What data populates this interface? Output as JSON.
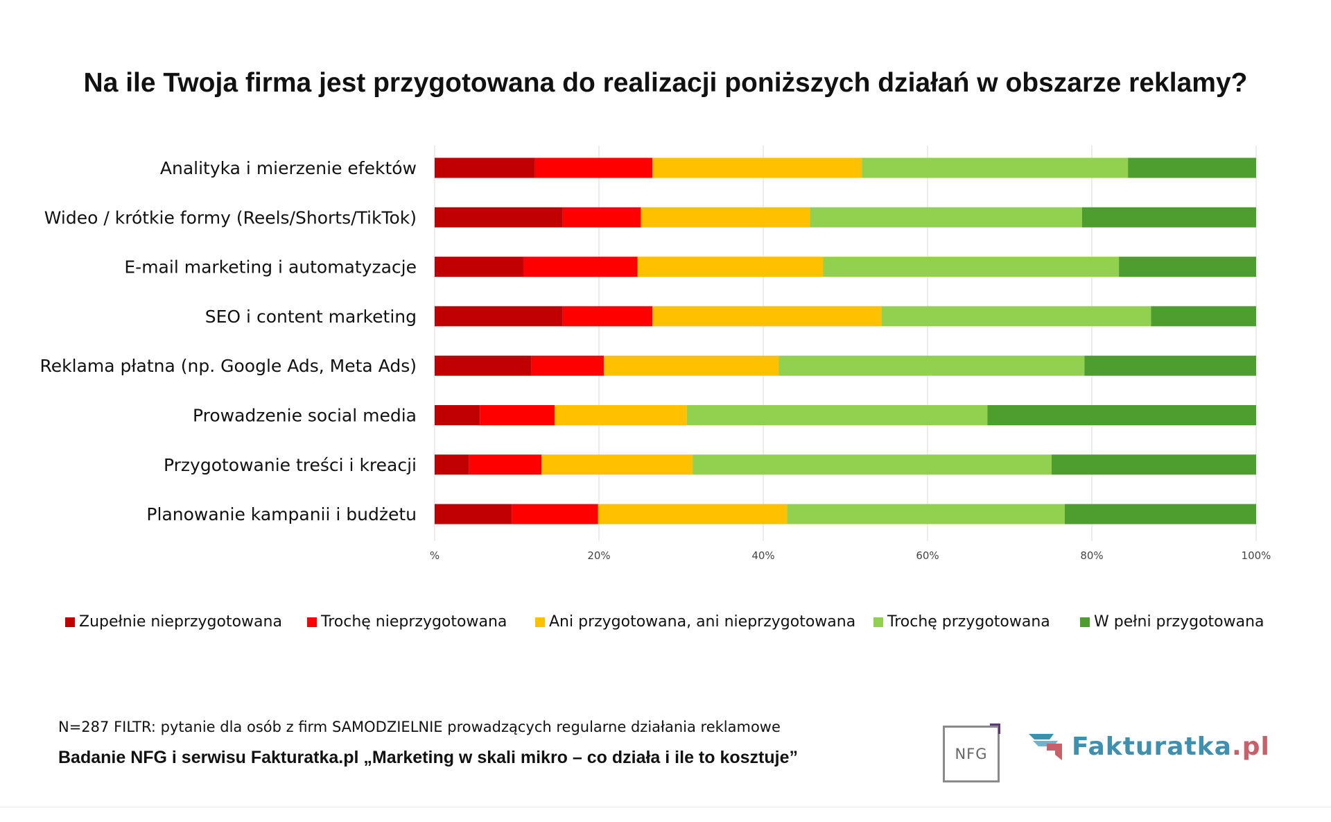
{
  "colors": {
    "zupelnie": "#c00000",
    "troche_nie": "#ff0000",
    "ani": "#ffc000",
    "troche_przyg": "#92d050",
    "pelni": "#4e9d2f",
    "brand_blue": "#3e8fb0",
    "brand_red": "#c8606a"
  },
  "chart_data": {
    "type": "bar",
    "orientation": "horizontal",
    "stacked": true,
    "title": "Na ile Twoja firma jest przygotowana do realizacji poniższych działań w obszarze reklamy?",
    "categories": [
      "Analityka i mierzenie efektów",
      "Wideo / krótkie formy (Reels/Shorts/TikTok)",
      "E-mail marketing i automatyzacje",
      "SEO i content marketing",
      "Reklama płatna (np. Google Ads, Meta Ads)",
      "Prowadzenie social media",
      "Przygotowanie treści i kreacji",
      "Planowanie kampanii i budżetu"
    ],
    "series": [
      {
        "name": "Zupełnie nieprzygotowana",
        "color_key": "zupelnie",
        "values": [
          12.2,
          15.6,
          10.8,
          15.6,
          11.8,
          5.5,
          4.2,
          9.4
        ]
      },
      {
        "name": "Trochę nieprzygotowana",
        "color_key": "troche_nie",
        "values": [
          14.3,
          9.5,
          13.9,
          10.9,
          8.8,
          9.1,
          8.8,
          10.5
        ]
      },
      {
        "name": "Ani przygotowana, ani nieprzygotowana",
        "color_key": "ani",
        "values": [
          25.5,
          20.6,
          22.6,
          27.9,
          21.3,
          16.1,
          18.4,
          23.0
        ]
      },
      {
        "name": "Trochę przygotowana",
        "color_key": "troche_przyg",
        "values": [
          32.4,
          33.1,
          36.0,
          32.8,
          37.2,
          36.6,
          43.7,
          33.8
        ]
      },
      {
        "name": "W pełni przygotowana",
        "color_key": "pelni",
        "values": [
          15.6,
          21.2,
          16.7,
          12.8,
          20.9,
          32.7,
          24.9,
          23.3
        ]
      }
    ],
    "x_ticks": [
      "%",
      "20%",
      "40%",
      "60%",
      "80%",
      "100%"
    ],
    "xlim": [
      0,
      100
    ],
    "grid": true,
    "legend_position": "bottom"
  },
  "footer": {
    "note": "N=287 FILTR: pytanie dla osób z firm SAMODZIELNIE prowadzących regularne działania reklamowe",
    "study": "Badanie NFG i serwisu Fakturatka.pl „Marketing w skali mikro – co działa i ile to kosztuje”"
  },
  "logos": {
    "nfg": "NFG",
    "fakturatka_name": "Fakturatka",
    "fakturatka_tld": ".pl"
  }
}
